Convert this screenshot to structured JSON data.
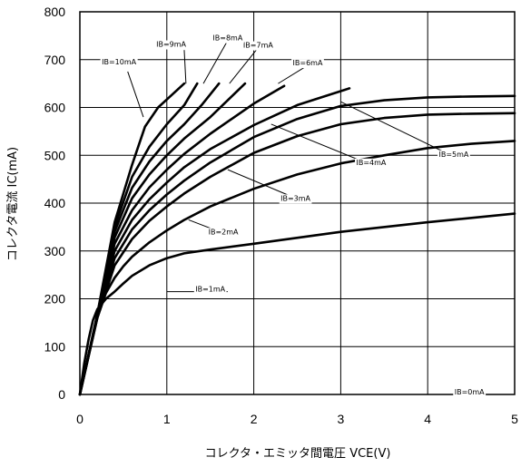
{
  "chart_data": {
    "type": "line",
    "xlabel": "コレクタ・エミッタ間電圧 VCE(V)",
    "ylabel": "コレクタ電流 IC(mA)",
    "xlim": [
      0,
      5
    ],
    "ylim": [
      0,
      800
    ],
    "xticks": [
      "0",
      "1",
      "2",
      "3",
      "4",
      "5"
    ],
    "yticks": [
      "0",
      "100",
      "200",
      "300",
      "400",
      "500",
      "600",
      "700",
      "800"
    ],
    "grid": true,
    "series": [
      {
        "name": "IB=0mA",
        "x": [
          0,
          5
        ],
        "y": [
          0,
          0
        ]
      },
      {
        "name": "IB=1mA",
        "x": [
          0,
          0.05,
          0.1,
          0.15,
          0.2,
          0.3,
          0.4,
          0.5,
          0.6,
          0.8,
          1.0,
          1.2,
          1.5,
          2.0,
          3.0,
          4.0,
          5.0
        ],
        "y": [
          0,
          65,
          115,
          155,
          178,
          200,
          215,
          232,
          248,
          270,
          285,
          295,
          303,
          315,
          340,
          360,
          378
        ]
      },
      {
        "name": "IB=2mA",
        "x": [
          0,
          0.1,
          0.2,
          0.3,
          0.4,
          0.5,
          0.6,
          0.8,
          1.0,
          1.2,
          1.5,
          2.0,
          2.5,
          3.0,
          3.5,
          4.0,
          4.5,
          5.0
        ],
        "y": [
          0,
          82,
          160,
          212,
          244,
          268,
          288,
          318,
          343,
          365,
          393,
          430,
          460,
          483,
          500,
          515,
          524,
          530
        ]
      },
      {
        "name": "IB=3mA",
        "x": [
          0,
          0.2,
          0.4,
          0.6,
          0.8,
          1.0,
          1.2,
          1.5,
          2.0,
          2.5,
          3.0,
          3.5,
          4.0,
          4.5,
          5.0
        ],
        "y": [
          0,
          160,
          270,
          325,
          363,
          393,
          420,
          455,
          505,
          540,
          565,
          578,
          585,
          587,
          588
        ]
      },
      {
        "name": "IB=4mA",
        "x": [
          0,
          0.2,
          0.4,
          0.6,
          0.8,
          1.0,
          1.2,
          1.5,
          2.0,
          2.5,
          3.0,
          3.5,
          4.0,
          4.5,
          5.0
        ],
        "y": [
          0,
          160,
          285,
          345,
          385,
          418,
          447,
          485,
          538,
          576,
          603,
          615,
          621,
          623,
          624
        ]
      },
      {
        "name": "IB=5mA",
        "x": [
          0,
          0.2,
          0.4,
          0.6,
          0.8,
          1.0,
          1.2,
          1.5,
          2.0,
          2.5,
          3.1
        ],
        "y": [
          0,
          162,
          300,
          365,
          408,
          443,
          475,
          513,
          563,
          605,
          640
        ]
      },
      {
        "name": "IB=6mA",
        "x": [
          0,
          0.2,
          0.4,
          0.6,
          0.8,
          1.0,
          1.2,
          1.5,
          2.0,
          2.35
        ],
        "y": [
          0,
          162,
          315,
          385,
          433,
          470,
          503,
          545,
          608,
          645
        ]
      },
      {
        "name": "IB=7mA",
        "x": [
          0,
          0.2,
          0.4,
          0.6,
          0.8,
          1.0,
          1.2,
          1.5,
          1.9
        ],
        "y": [
          0,
          164,
          328,
          410,
          460,
          500,
          535,
          580,
          650
        ]
      },
      {
        "name": "IB=8mA",
        "x": [
          0,
          0.2,
          0.4,
          0.6,
          0.8,
          1.0,
          1.2,
          1.4,
          1.6
        ],
        "y": [
          0,
          165,
          340,
          432,
          487,
          530,
          565,
          605,
          650
        ]
      },
      {
        "name": "IB=9mA",
        "x": [
          0,
          0.2,
          0.4,
          0.6,
          0.8,
          1.0,
          1.2,
          1.35
        ],
        "y": [
          0,
          167,
          350,
          455,
          518,
          565,
          605,
          650
        ]
      },
      {
        "name": "IB=10mA",
        "x": [
          0,
          0.2,
          0.4,
          0.6,
          0.75,
          0.9,
          1.05,
          1.2
        ],
        "y": [
          0,
          168,
          360,
          480,
          560,
          600,
          625,
          650
        ]
      }
    ]
  }
}
